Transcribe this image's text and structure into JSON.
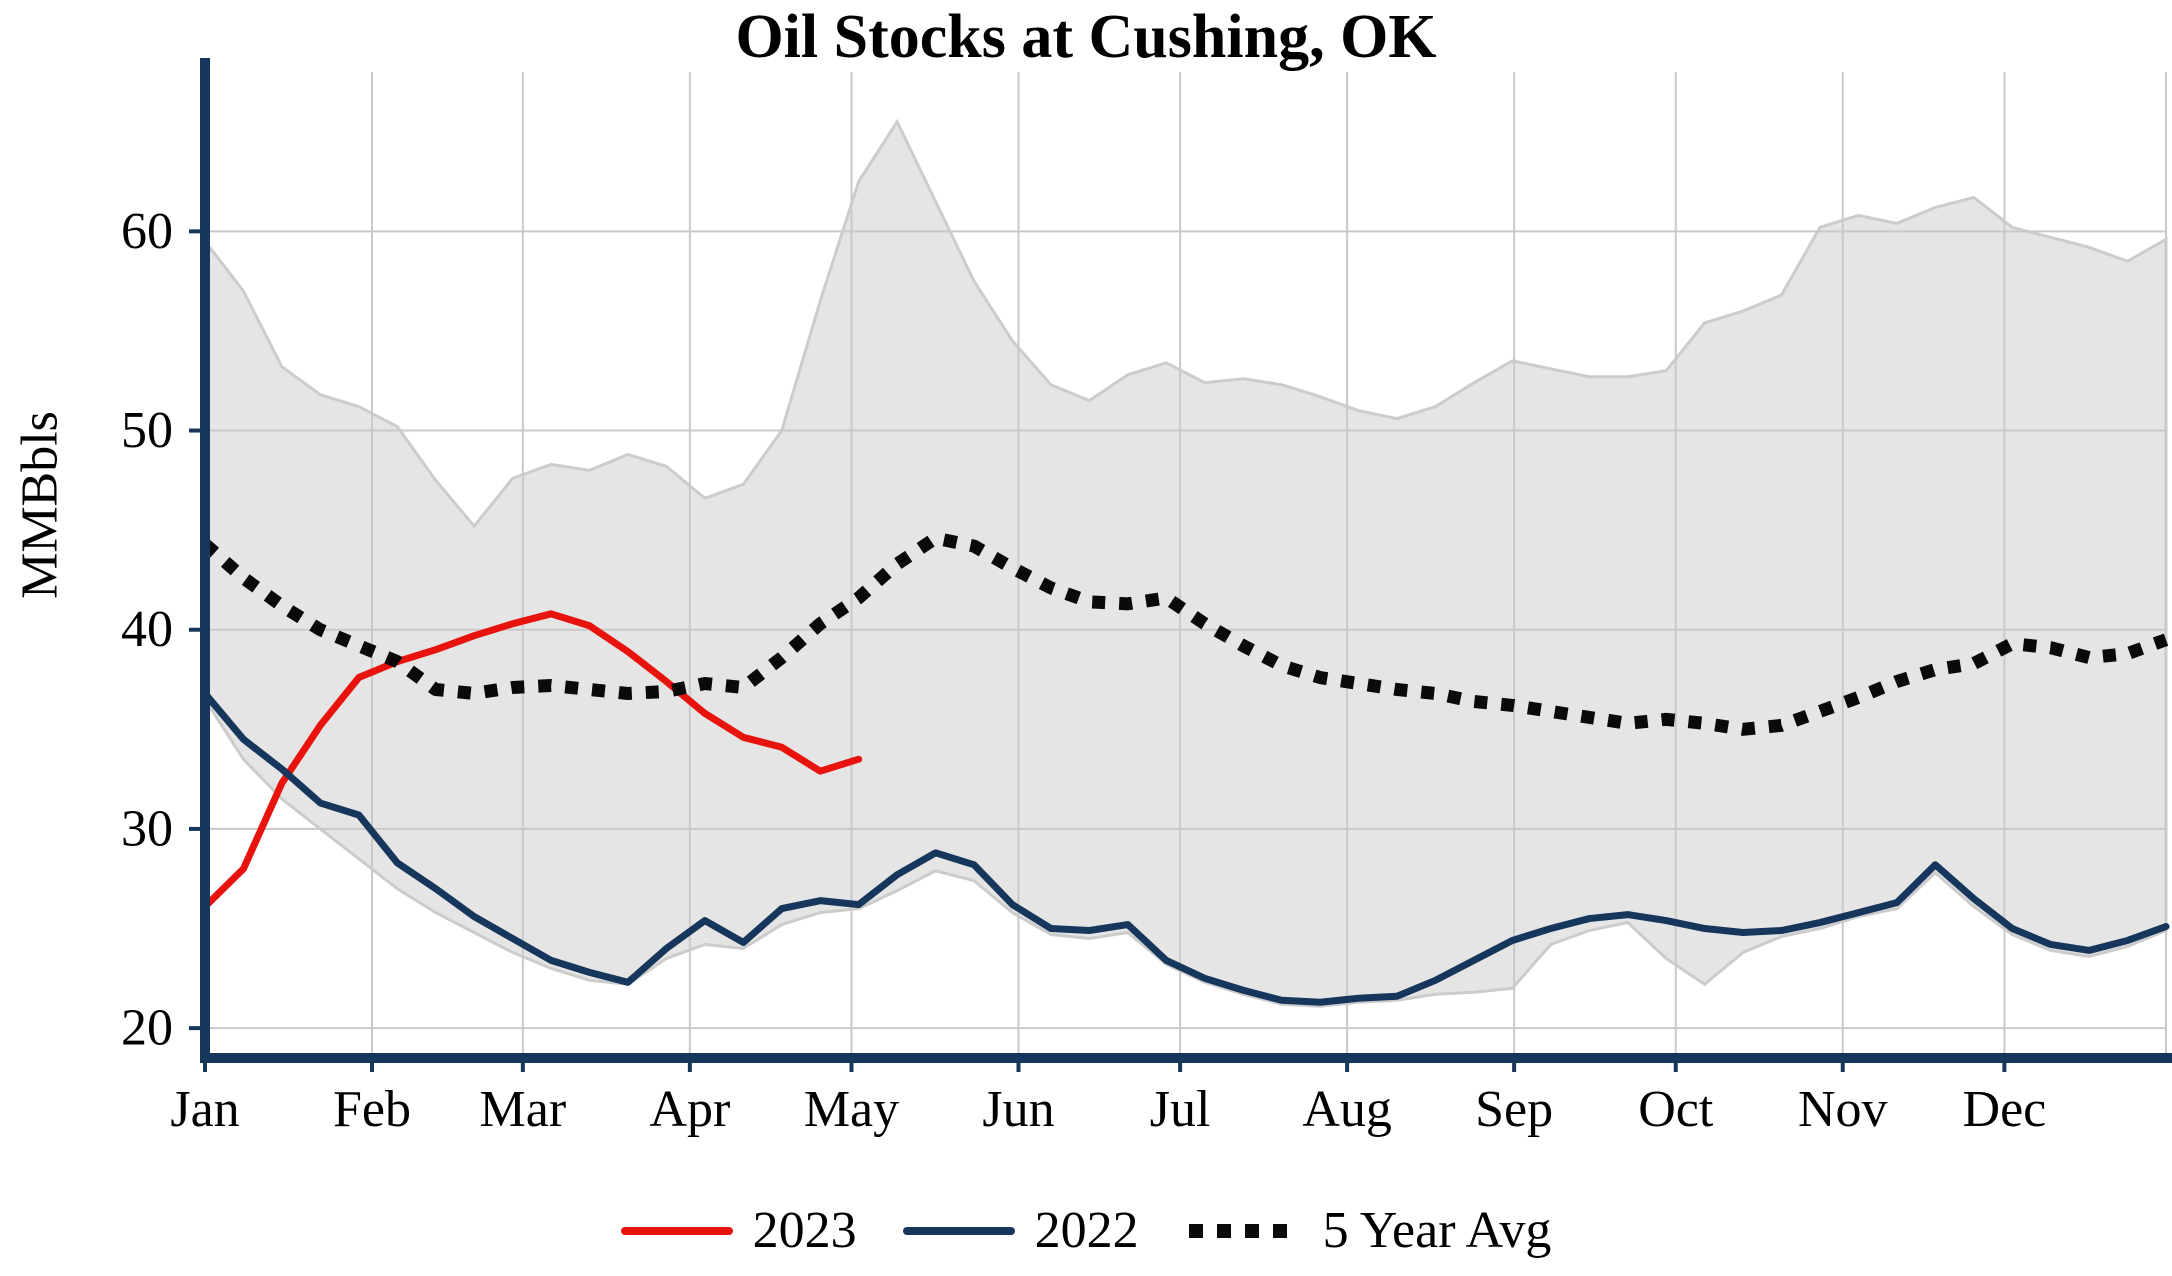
{
  "chart_data": {
    "type": "line",
    "title": "Oil Stocks at Cushing, OK",
    "xlabel": "",
    "ylabel": "MMBbls",
    "ylim": [
      18.5,
      68
    ],
    "yticks": [
      20,
      30,
      40,
      50,
      60
    ],
    "xtick_labels": [
      "Jan",
      "Feb",
      "Mar",
      "Apr",
      "May",
      "Jun",
      "Jul",
      "Aug",
      "Sep",
      "Oct",
      "Nov",
      "Dec"
    ],
    "xtick_days": [
      0,
      31,
      59,
      90,
      120,
      151,
      181,
      212,
      243,
      273,
      304,
      334
    ],
    "x_range_days": [
      0,
      364
    ],
    "grid": true,
    "legend_position": "bottom",
    "colors": {
      "grid": "#c9c9c9",
      "axis": "#16365c",
      "background": "#ffffff"
    },
    "band": {
      "fill": "#e5e5e5",
      "edge": "#cccccc",
      "upper": [
        59.5,
        57.0,
        53.2,
        51.8,
        51.2,
        50.2,
        47.5,
        45.2,
        47.6,
        48.3,
        48.0,
        48.8,
        48.2,
        46.6,
        47.3,
        50.0,
        56.5,
        62.5,
        65.5,
        61.5,
        57.5,
        54.5,
        52.3,
        51.5,
        52.8,
        53.4,
        52.4,
        52.6,
        52.3,
        51.7,
        51.0,
        50.6,
        51.2,
        52.4,
        53.5,
        53.1,
        52.7,
        52.7,
        53.0,
        55.4,
        56.0,
        56.8,
        60.2,
        60.8,
        60.4,
        61.2,
        61.7,
        60.2,
        59.7,
        59.2,
        58.5,
        59.6
      ],
      "lower": [
        36.5,
        33.5,
        31.5,
        30.0,
        28.5,
        27.0,
        25.8,
        24.8,
        23.8,
        23.0,
        22.4,
        22.2,
        23.5,
        24.2,
        24.0,
        25.2,
        25.8,
        26.0,
        26.9,
        27.9,
        27.4,
        25.8,
        24.7,
        24.5,
        24.8,
        23.2,
        22.3,
        21.7,
        21.2,
        21.1,
        21.3,
        21.4,
        21.7,
        21.8,
        22.0,
        24.2,
        24.9,
        25.3,
        23.5,
        22.2,
        23.8,
        24.6,
        25.0,
        25.6,
        26.0,
        27.8,
        26.1,
        24.7,
        23.9,
        23.6,
        24.1,
        24.9
      ]
    },
    "series": [
      {
        "name": "2023",
        "color": "#e8130d",
        "style": "solid",
        "values": [
          26.1,
          28.0,
          32.3,
          35.2,
          37.6,
          38.4,
          39.0,
          39.7,
          40.3,
          40.8,
          40.2,
          38.9,
          37.4,
          35.8,
          34.6,
          34.1,
          32.9,
          33.5
        ]
      },
      {
        "name": "2022",
        "color": "#16365c",
        "style": "solid",
        "values": [
          36.8,
          34.5,
          33.0,
          31.3,
          30.7,
          28.3,
          27.0,
          25.6,
          24.5,
          23.4,
          22.8,
          22.3,
          24.0,
          25.4,
          24.3,
          26.0,
          26.4,
          26.2,
          27.7,
          28.8,
          28.2,
          26.2,
          25.0,
          24.9,
          25.2,
          23.4,
          22.5,
          21.9,
          21.4,
          21.3,
          21.5,
          21.6,
          22.4,
          23.4,
          24.4,
          25.0,
          25.5,
          25.7,
          25.4,
          25.0,
          24.8,
          24.9,
          25.3,
          25.8,
          26.3,
          28.2,
          26.5,
          25.0,
          24.2,
          23.9,
          24.4,
          25.1
        ]
      },
      {
        "name": "5 Year Avg",
        "color": "#0a0a0a",
        "style": "dotted",
        "values": [
          44.3,
          42.6,
          41.2,
          40.0,
          39.2,
          38.4,
          37.0,
          36.8,
          37.1,
          37.2,
          37.0,
          36.8,
          36.9,
          37.3,
          37.1,
          38.6,
          40.3,
          41.6,
          43.3,
          44.6,
          44.2,
          43.1,
          42.1,
          41.4,
          41.3,
          41.6,
          40.3,
          39.2,
          38.2,
          37.6,
          37.3,
          37.0,
          36.8,
          36.4,
          36.2,
          35.9,
          35.6,
          35.3,
          35.5,
          35.3,
          35.0,
          35.2,
          35.9,
          36.6,
          37.4,
          38.0,
          38.3,
          39.3,
          39.1,
          38.6,
          38.8,
          39.5
        ]
      }
    ]
  }
}
